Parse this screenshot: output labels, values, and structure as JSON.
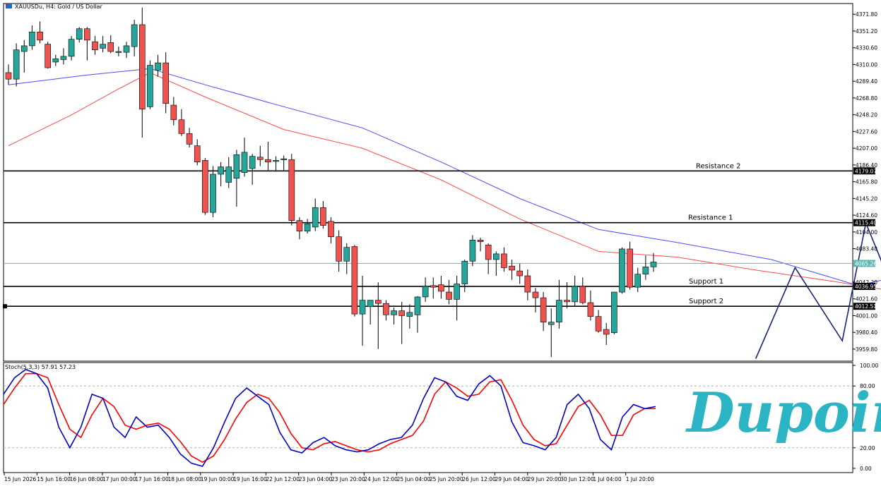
{
  "header": {
    "symbol_title": "XAUUSDu, H4:  Gold / US Dollar"
  },
  "stoch_header": "Stoch(5,3,3) 57.91 57.23",
  "logo_text": "Dupoin",
  "colors": {
    "bull": "#26a69a",
    "bear": "#ef5350",
    "ma_slow": "#4a4aff",
    "ma_fast": "#ff4a4a",
    "stoch_main": "#0000c8",
    "stoch_signal": "#ff0000",
    "pattern": "#1a237e",
    "price_line": "#5fb8b0",
    "logo": "#2bb4c3"
  },
  "chart_data": {
    "type": "candlestick",
    "price_axis": {
      "min": 3945,
      "max": 4385,
      "ticks": [
        "4371.80",
        "4351.20",
        "4330.60",
        "4310.00",
        "4289.40",
        "4268.80",
        "4248.20",
        "4227.60",
        "4207.00",
        "4186.40",
        "4165.80",
        "4145.20",
        "4124.60",
        "4104.00",
        "4083.40",
        "4042.20",
        "4021.60",
        "4001.00",
        "3980.40",
        "3959.80"
      ]
    },
    "time_axis": [
      "15 Jun 2026",
      "15 Jun 16:00",
      "16 Jun 08:00",
      "17 Jun 00:00",
      "17 Jun 16:00",
      "18 Jun 08:00",
      "19 Jun 00:00",
      "19 Jun 16:00",
      "22 Jun 12:00",
      "23 Jun 04:00",
      "23 Jun 20:00",
      "24 Jun 12:00",
      "25 Jun 04:00",
      "25 Jun 20:00",
      "26 Jun 12:00",
      "29 Jun 04:00",
      "29 Jun 20:00",
      "30 Jun 12:00",
      "1 Jul 04:00",
      "1 Jul 20:00"
    ],
    "candles": [
      {
        "o": 4300,
        "h": 4310,
        "l": 4285,
        "c": 4292
      },
      {
        "o": 4292,
        "h": 4336,
        "l": 4283,
        "c": 4328
      },
      {
        "o": 4326,
        "h": 4340,
        "l": 4300,
        "c": 4333
      },
      {
        "o": 4333,
        "h": 4358,
        "l": 4328,
        "c": 4350
      },
      {
        "o": 4350,
        "h": 4363,
        "l": 4336,
        "c": 4340
      },
      {
        "o": 4335,
        "h": 4338,
        "l": 4305,
        "c": 4306
      },
      {
        "o": 4313,
        "h": 4322,
        "l": 4308,
        "c": 4317
      },
      {
        "o": 4316,
        "h": 4330,
        "l": 4310,
        "c": 4320
      },
      {
        "o": 4320,
        "h": 4345,
        "l": 4315,
        "c": 4341
      },
      {
        "o": 4341,
        "h": 4356,
        "l": 4337,
        "c": 4354
      },
      {
        "o": 4354,
        "h": 4356,
        "l": 4315,
        "c": 4340
      },
      {
        "o": 4338,
        "h": 4345,
        "l": 4322,
        "c": 4328
      },
      {
        "o": 4330,
        "h": 4345,
        "l": 4325,
        "c": 4335
      },
      {
        "o": 4337,
        "h": 4346,
        "l": 4324,
        "c": 4326
      },
      {
        "o": 4325,
        "h": 4332,
        "l": 4320,
        "c": 4326
      },
      {
        "o": 4325,
        "h": 4338,
        "l": 4318,
        "c": 4333
      },
      {
        "o": 4332,
        "h": 4365,
        "l": 4320,
        "c": 4359
      },
      {
        "o": 4359,
        "h": 4380,
        "l": 4220,
        "c": 4255
      },
      {
        "o": 4258,
        "h": 4315,
        "l": 4255,
        "c": 4309
      },
      {
        "o": 4303,
        "h": 4322,
        "l": 4295,
        "c": 4312
      },
      {
        "o": 4312,
        "h": 4325,
        "l": 4250,
        "c": 4262
      },
      {
        "o": 4260,
        "h": 4270,
        "l": 4235,
        "c": 4242
      },
      {
        "o": 4242,
        "h": 4255,
        "l": 4222,
        "c": 4225
      },
      {
        "o": 4225,
        "h": 4232,
        "l": 4208,
        "c": 4212
      },
      {
        "o": 4210,
        "h": 4218,
        "l": 4186,
        "c": 4190
      },
      {
        "o": 4192,
        "h": 4195,
        "l": 4125,
        "c": 4128
      },
      {
        "o": 4128,
        "h": 4185,
        "l": 4122,
        "c": 4175
      },
      {
        "o": 4175,
        "h": 4190,
        "l": 4160,
        "c": 4184
      },
      {
        "o": 4165,
        "h": 4196,
        "l": 4158,
        "c": 4184
      },
      {
        "o": 4170,
        "h": 4205,
        "l": 4135,
        "c": 4199
      },
      {
        "o": 4177,
        "h": 4220,
        "l": 4172,
        "c": 4202
      },
      {
        "o": 4182,
        "h": 4200,
        "l": 4162,
        "c": 4197
      },
      {
        "o": 4196,
        "h": 4210,
        "l": 4185,
        "c": 4193
      },
      {
        "o": 4193,
        "h": 4215,
        "l": 4180,
        "c": 4190
      },
      {
        "o": 4191,
        "h": 4197,
        "l": 4178,
        "c": 4192
      },
      {
        "o": 4193,
        "h": 4198,
        "l": 4180,
        "c": 4194
      },
      {
        "o": 4193,
        "h": 4200,
        "l": 4112,
        "c": 4118
      },
      {
        "o": 4118,
        "h": 4122,
        "l": 4095,
        "c": 4105
      },
      {
        "o": 4105,
        "h": 4120,
        "l": 4102,
        "c": 4114
      },
      {
        "o": 4110,
        "h": 4145,
        "l": 4105,
        "c": 4134
      },
      {
        "o": 4134,
        "h": 4142,
        "l": 4108,
        "c": 4112
      },
      {
        "o": 4117,
        "h": 4122,
        "l": 4090,
        "c": 4098
      },
      {
        "o": 4098,
        "h": 4106,
        "l": 4055,
        "c": 4068
      },
      {
        "o": 4068,
        "h": 4090,
        "l": 4052,
        "c": 4085
      },
      {
        "o": 4086,
        "h": 4088,
        "l": 4000,
        "c": 4003
      },
      {
        "o": 4003,
        "h": 4050,
        "l": 3964,
        "c": 4020
      },
      {
        "o": 4012,
        "h": 4020,
        "l": 3990,
        "c": 4020
      },
      {
        "o": 4020,
        "h": 4042,
        "l": 3960,
        "c": 4016
      },
      {
        "o": 4016,
        "h": 4020,
        "l": 3995,
        "c": 4002
      },
      {
        "o": 4002,
        "h": 4011,
        "l": 3990,
        "c": 4007
      },
      {
        "o": 4007,
        "h": 4018,
        "l": 3966,
        "c": 4001
      },
      {
        "o": 4000,
        "h": 4015,
        "l": 3985,
        "c": 4005
      },
      {
        "o": 4002,
        "h": 4025,
        "l": 3980,
        "c": 4024
      },
      {
        "o": 4024,
        "h": 4048,
        "l": 4018,
        "c": 4037
      },
      {
        "o": 4038,
        "h": 4048,
        "l": 4022,
        "c": 4036
      },
      {
        "o": 4039,
        "h": 4050,
        "l": 4022,
        "c": 4031
      },
      {
        "o": 4030,
        "h": 4045,
        "l": 4015,
        "c": 4021
      },
      {
        "o": 4021,
        "h": 4050,
        "l": 3995,
        "c": 4040
      },
      {
        "o": 4040,
        "h": 4070,
        "l": 4030,
        "c": 4068
      },
      {
        "o": 4068,
        "h": 4100,
        "l": 4062,
        "c": 4094
      },
      {
        "o": 4094,
        "h": 4097,
        "l": 4080,
        "c": 4092
      },
      {
        "o": 4088,
        "h": 4090,
        "l": 4052,
        "c": 4070
      },
      {
        "o": 4070,
        "h": 4080,
        "l": 4050,
        "c": 4077
      },
      {
        "o": 4077,
        "h": 4085,
        "l": 4055,
        "c": 4060
      },
      {
        "o": 4062,
        "h": 4070,
        "l": 4045,
        "c": 4057
      },
      {
        "o": 4056,
        "h": 4065,
        "l": 4040,
        "c": 4050
      },
      {
        "o": 4050,
        "h": 4058,
        "l": 4020,
        "c": 4030
      },
      {
        "o": 4030,
        "h": 4035,
        "l": 4005,
        "c": 4023
      },
      {
        "o": 4023,
        "h": 4030,
        "l": 3982,
        "c": 3993
      },
      {
        "o": 3990,
        "h": 4010,
        "l": 3950,
        "c": 3993
      },
      {
        "o": 3993,
        "h": 4045,
        "l": 3985,
        "c": 4020
      },
      {
        "o": 4020,
        "h": 4042,
        "l": 4010,
        "c": 4018
      },
      {
        "o": 4018,
        "h": 4050,
        "l": 4012,
        "c": 4037
      },
      {
        "o": 4037,
        "h": 4048,
        "l": 4015,
        "c": 4017
      },
      {
        "o": 4017,
        "h": 4032,
        "l": 3995,
        "c": 4000
      },
      {
        "o": 4000,
        "h": 4008,
        "l": 3980,
        "c": 3982
      },
      {
        "o": 3984,
        "h": 3992,
        "l": 3965,
        "c": 3978
      },
      {
        "o": 3980,
        "h": 4030,
        "l": 3978,
        "c": 4030
      },
      {
        "o": 4030,
        "h": 4085,
        "l": 4028,
        "c": 4083
      },
      {
        "o": 4083,
        "h": 4092,
        "l": 4033,
        "c": 4036
      },
      {
        "o": 4036,
        "h": 4060,
        "l": 4030,
        "c": 4052
      },
      {
        "o": 4052,
        "h": 4075,
        "l": 4045,
        "c": 4061
      },
      {
        "o": 4061,
        "h": 4078,
        "l": 4055,
        "c": 4067
      }
    ],
    "ma_slow_points": [
      [
        0,
        4285
      ],
      [
        10,
        4297
      ],
      [
        18,
        4305
      ],
      [
        25,
        4285
      ],
      [
        35,
        4258
      ],
      [
        45,
        4232
      ],
      [
        55,
        4190
      ],
      [
        65,
        4145
      ],
      [
        75,
        4107
      ],
      [
        85,
        4091
      ],
      [
        97,
        4070
      ],
      [
        108,
        4038
      ],
      [
        118,
        4060
      ],
      [
        128,
        4055
      ]
    ],
    "ma_fast_points": [
      [
        0,
        4210
      ],
      [
        8,
        4248
      ],
      [
        14,
        4280
      ],
      [
        18,
        4300
      ],
      [
        25,
        4270
      ],
      [
        35,
        4230
      ],
      [
        45,
        4207
      ],
      [
        55,
        4168
      ],
      [
        65,
        4120
      ],
      [
        75,
        4080
      ],
      [
        85,
        4073
      ],
      [
        95,
        4057
      ],
      [
        105,
        4043
      ],
      [
        115,
        4027
      ],
      [
        120,
        4030
      ],
      [
        128,
        4035
      ]
    ],
    "levels": [
      {
        "label": "Resistance 2",
        "price": 4179.07,
        "tag": "4179.07"
      },
      {
        "label": "Resistance 1",
        "price": 4115.4,
        "tag": "4115.40"
      },
      {
        "label": "Support 1",
        "price": 4036.95,
        "tag": "4036.95"
      },
      {
        "label": "Support 2",
        "price": 4012.51,
        "tag": "4012.51"
      }
    ],
    "current_price": {
      "price": 4065.26,
      "tag": "4065.26"
    },
    "pattern_path": [
      [
        95,
        3948
      ],
      [
        100,
        4060
      ],
      [
        106,
        3970
      ],
      [
        109,
        4115
      ],
      [
        113,
        4020
      ],
      [
        120,
        4179
      ]
    ],
    "stochastic": {
      "levels": [
        "100.00",
        "80.00",
        "20.00",
        "0.00"
      ],
      "main": [
        72,
        88,
        96,
        92,
        78,
        40,
        20,
        40,
        72,
        68,
        40,
        30,
        50,
        40,
        42,
        30,
        14,
        5,
        2,
        20,
        45,
        68,
        78,
        70,
        62,
        35,
        18,
        15,
        25,
        30,
        22,
        18,
        16,
        18,
        24,
        28,
        30,
        42,
        68,
        88,
        84,
        70,
        66,
        82,
        90,
        80,
        45,
        25,
        22,
        18,
        30,
        62,
        72,
        58,
        28,
        18,
        50,
        62,
        58,
        60
      ],
      "signal": [
        62,
        78,
        92,
        92,
        88,
        62,
        38,
        30,
        52,
        68,
        60,
        42,
        38,
        42,
        44,
        38,
        26,
        12,
        6,
        12,
        28,
        48,
        64,
        72,
        68,
        54,
        34,
        20,
        18,
        24,
        26,
        22,
        18,
        16,
        18,
        24,
        28,
        32,
        46,
        72,
        84,
        78,
        70,
        72,
        84,
        86,
        66,
        42,
        28,
        22,
        24,
        42,
        60,
        66,
        52,
        32,
        32,
        52,
        58,
        58
      ]
    }
  }
}
